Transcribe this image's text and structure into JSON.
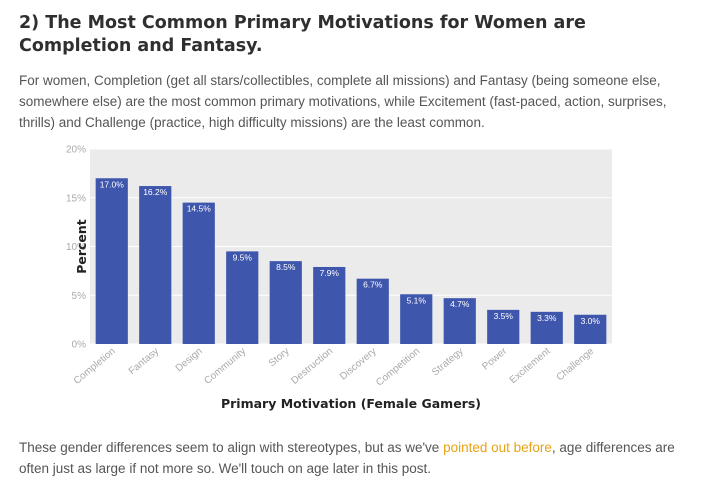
{
  "heading": "2) The Most Common Primary Motivations for Women are Completion and Fantasy.",
  "intro": "For women, Completion (get all stars/collectibles, complete all missions) and Fantasy (being someone else, somewhere else) are the most common primary motivations, while Excitement (fast-paced, action, surprises, thrills) and Challenge (practice, high difficulty missions) are the least common.",
  "outro": {
    "before": "These gender differences seem to align with stereotypes, but as we've ",
    "link": "pointed out before",
    "after": ", age differences are often just as large if not more so. We'll touch on age later in this post."
  },
  "colors": {
    "bar": "#3f56ad",
    "plot_bg": "#ebebeb",
    "link": "#e8a317"
  },
  "chart_data": {
    "type": "bar",
    "title": "",
    "xlabel": "Primary Motivation (Female Gamers)",
    "ylabel": "Percent",
    "ylim": [
      0,
      20
    ],
    "yticks": [
      "0%",
      "5%",
      "10%",
      "15%",
      "20%"
    ],
    "grid": true,
    "categories": [
      "Completion",
      "Fantasy",
      "Design",
      "Community",
      "Story",
      "Destruction",
      "Discovery",
      "Competition",
      "Strategy",
      "Power",
      "Excitement",
      "Challenge"
    ],
    "values": [
      17.0,
      16.2,
      14.5,
      9.5,
      8.5,
      7.9,
      6.7,
      5.1,
      4.7,
      3.5,
      3.3,
      3.0
    ],
    "value_labels": [
      "17.0%",
      "16.2%",
      "14.5%",
      "9.5%",
      "8.5%",
      "7.9%",
      "6.7%",
      "5.1%",
      "4.7%",
      "3.5%",
      "3.3%",
      "3.0%"
    ]
  }
}
